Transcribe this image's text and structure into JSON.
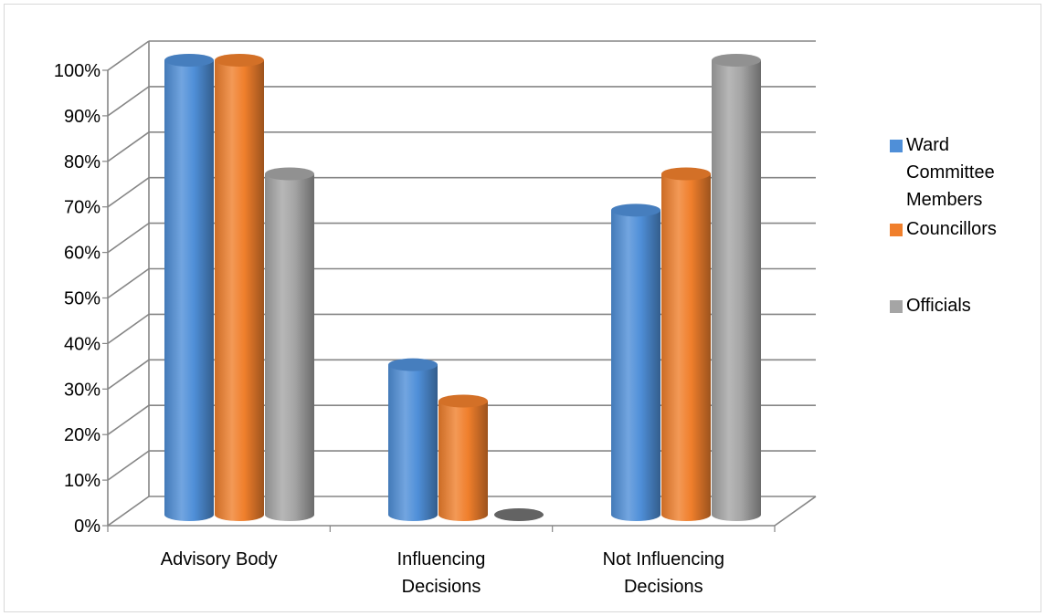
{
  "chart_data": {
    "type": "bar",
    "style": "3d-cylinder",
    "categories": [
      "Advisory Body",
      "Influencing Decisions",
      "Not Influencing Decisions"
    ],
    "series": [
      {
        "name": "Ward Committee Members",
        "values": [
          100,
          33,
          67
        ],
        "color": "#4f8fd8"
      },
      {
        "name": "Councillors",
        "values": [
          100,
          25,
          75
        ],
        "color": "#f07f2c"
      },
      {
        "name": "Officials",
        "values": [
          75,
          0,
          100
        ],
        "color": "#a5a5a5"
      }
    ],
    "y_ticks": [
      "0%",
      "10%",
      "20%",
      "30%",
      "40%",
      "50%",
      "60%",
      "70%",
      "80%",
      "90%",
      "100%"
    ],
    "ylim": [
      0,
      100
    ],
    "grid": true,
    "legend_position": "right"
  }
}
